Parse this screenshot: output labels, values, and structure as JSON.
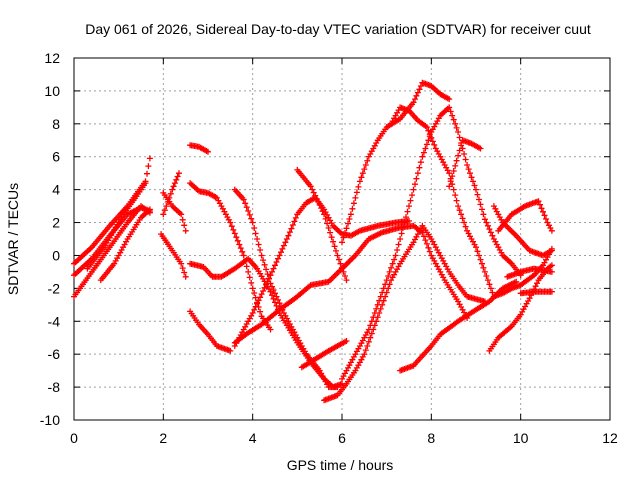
{
  "chart_data": {
    "type": "scatter",
    "title": "Day 061 of 2026, Sidereal Day-to-day VTEC variation (SDTVAR) for receiver cuut",
    "xlabel": "GPS time / hours",
    "ylabel": "SDTVAR / TECUs",
    "xlim": [
      0,
      12
    ],
    "ylim": [
      -10,
      12
    ],
    "xticks": [
      "0",
      "2",
      "4",
      "6",
      "8",
      "10",
      "12"
    ],
    "yticks": [
      "-10",
      "-8",
      "-6",
      "-4",
      "-2",
      "0",
      "2",
      "4",
      "6",
      "8",
      "10",
      "12"
    ],
    "grid": true,
    "marker": "+",
    "color": "#ff0000",
    "series": [
      {
        "name": "track-1",
        "points": [
          [
            0.0,
            -0.5
          ],
          [
            0.4,
            0.5
          ],
          [
            0.8,
            1.8
          ],
          [
            1.2,
            3.0
          ],
          [
            1.6,
            4.5
          ],
          [
            1.7,
            5.9
          ]
        ]
      },
      {
        "name": "track-2",
        "points": [
          [
            0.0,
            -1.2
          ],
          [
            0.4,
            -0.2
          ],
          [
            0.8,
            1.2
          ],
          [
            1.2,
            2.5
          ],
          [
            1.5,
            2.9
          ],
          [
            1.7,
            2.7
          ]
        ]
      },
      {
        "name": "track-3",
        "points": [
          [
            0.0,
            -2.5
          ],
          [
            0.4,
            -1.0
          ],
          [
            0.8,
            0.5
          ],
          [
            1.2,
            2.0
          ],
          [
            1.5,
            3.0
          ],
          [
            1.7,
            2.6
          ]
        ]
      },
      {
        "name": "track-4",
        "points": [
          [
            0.6,
            -1.5
          ],
          [
            0.9,
            -0.5
          ],
          [
            1.2,
            1.0
          ],
          [
            1.5,
            2.3
          ],
          [
            1.7,
            2.8
          ]
        ]
      },
      {
        "name": "track-5",
        "points": [
          [
            0.3,
            -0.8
          ],
          [
            0.7,
            0.6
          ],
          [
            1.1,
            2.5
          ],
          [
            1.4,
            3.6
          ],
          [
            1.6,
            4.4
          ]
        ]
      },
      {
        "name": "track-6",
        "points": [
          [
            1.95,
            1.3
          ],
          [
            2.2,
            0.3
          ],
          [
            2.4,
            -0.5
          ],
          [
            2.5,
            -1.3
          ]
        ]
      },
      {
        "name": "track-7",
        "points": [
          [
            2.0,
            3.8
          ],
          [
            2.2,
            3.0
          ],
          [
            2.4,
            2.5
          ],
          [
            2.5,
            1.5
          ]
        ]
      },
      {
        "name": "track-8",
        "points": [
          [
            2.0,
            2.5
          ],
          [
            2.2,
            4.0
          ],
          [
            2.35,
            5.0
          ]
        ]
      },
      {
        "name": "track-9",
        "points": [
          [
            2.6,
            6.7
          ],
          [
            2.8,
            6.6
          ],
          [
            3.0,
            6.3
          ]
        ]
      },
      {
        "name": "track-10",
        "points": [
          [
            2.6,
            4.4
          ],
          [
            2.8,
            3.9
          ],
          [
            3.0,
            3.8
          ],
          [
            3.2,
            3.5
          ],
          [
            3.5,
            2.0
          ],
          [
            3.8,
            0.0
          ],
          [
            4.0,
            -2.0
          ],
          [
            4.2,
            -3.7
          ],
          [
            4.4,
            -4.5
          ]
        ]
      },
      {
        "name": "track-11",
        "points": [
          [
            2.6,
            -3.4
          ],
          [
            2.8,
            -4.2
          ],
          [
            3.0,
            -4.8
          ],
          [
            3.2,
            -5.5
          ],
          [
            3.5,
            -5.8
          ]
        ]
      },
      {
        "name": "track-12",
        "points": [
          [
            2.6,
            -0.5
          ],
          [
            2.9,
            -0.7
          ],
          [
            3.1,
            -1.3
          ],
          [
            3.3,
            -1.3
          ],
          [
            3.6,
            -0.8
          ],
          [
            3.9,
            -0.2
          ],
          [
            4.1,
            -0.8
          ],
          [
            4.4,
            -2.2
          ],
          [
            4.6,
            -3.5
          ],
          [
            5.0,
            -5.3
          ],
          [
            5.3,
            -6.5
          ],
          [
            5.6,
            -7.5
          ],
          [
            5.8,
            -8.0
          ],
          [
            6.0,
            -7.8
          ]
        ]
      },
      {
        "name": "track-13",
        "points": [
          [
            3.6,
            4.0
          ],
          [
            3.8,
            3.4
          ],
          [
            4.0,
            2.0
          ],
          [
            4.2,
            0.0
          ],
          [
            4.4,
            -1.7
          ],
          [
            4.7,
            -3.5
          ],
          [
            5.0,
            -5.0
          ],
          [
            5.2,
            -6.0
          ],
          [
            5.5,
            -7.0
          ],
          [
            5.7,
            -8.0
          ],
          [
            5.9,
            -8.0
          ]
        ]
      },
      {
        "name": "track-14",
        "points": [
          [
            3.6,
            -5.3
          ],
          [
            3.9,
            -4.7
          ],
          [
            4.2,
            -4.2
          ],
          [
            4.6,
            -3.3
          ],
          [
            5.0,
            -2.5
          ],
          [
            5.3,
            -1.8
          ],
          [
            5.7,
            -1.6
          ],
          [
            6.0,
            -0.8
          ],
          [
            6.3,
            0.0
          ],
          [
            6.6,
            1.0
          ],
          [
            6.9,
            1.4
          ],
          [
            7.3,
            1.7
          ],
          [
            7.6,
            1.8
          ],
          [
            7.8,
            1.4
          ],
          [
            8.0,
            0.0
          ],
          [
            8.3,
            -1.5
          ],
          [
            8.6,
            -2.8
          ],
          [
            8.8,
            -3.8
          ]
        ]
      },
      {
        "name": "track-15",
        "points": [
          [
            3.6,
            -5.5
          ],
          [
            4.0,
            -3.5
          ],
          [
            4.4,
            -1.2
          ],
          [
            4.8,
            1.2
          ],
          [
            5.0,
            2.5
          ],
          [
            5.2,
            3.2
          ],
          [
            5.4,
            3.5
          ],
          [
            5.6,
            2.8
          ],
          [
            5.8,
            1.8
          ],
          [
            6.0,
            1.3
          ],
          [
            6.2,
            1.2
          ],
          [
            6.4,
            1.5
          ],
          [
            6.8,
            1.8
          ],
          [
            7.2,
            2.0
          ],
          [
            7.5,
            2.1
          ]
        ]
      },
      {
        "name": "track-16",
        "points": [
          [
            5.0,
            5.2
          ],
          [
            5.3,
            4.2
          ],
          [
            5.6,
            2.5
          ],
          [
            5.9,
            0.0
          ],
          [
            6.1,
            -1.5
          ]
        ]
      },
      {
        "name": "track-17",
        "points": [
          [
            5.6,
            -8.8
          ],
          [
            5.9,
            -8.5
          ],
          [
            6.1,
            -7.8
          ],
          [
            6.3,
            -7.0
          ],
          [
            6.5,
            -6.0
          ],
          [
            6.7,
            -4.5
          ],
          [
            6.9,
            -3.0
          ],
          [
            7.1,
            -1.5
          ],
          [
            7.3,
            -0.5
          ],
          [
            7.6,
            0.8
          ],
          [
            7.8,
            1.8
          ],
          [
            8.0,
            1.0
          ],
          [
            8.2,
            0.0
          ],
          [
            8.4,
            -1.0
          ],
          [
            8.6,
            -1.8
          ],
          [
            8.8,
            -2.5
          ],
          [
            9.2,
            -2.8
          ]
        ]
      },
      {
        "name": "track-18",
        "points": [
          [
            5.1,
            -6.8
          ],
          [
            5.4,
            -6.3
          ],
          [
            5.7,
            -5.8
          ],
          [
            5.9,
            -5.5
          ],
          [
            6.1,
            -5.2
          ]
        ]
      },
      {
        "name": "track-19",
        "points": [
          [
            6.0,
            0.8
          ],
          [
            6.2,
            2.5
          ],
          [
            6.4,
            4.5
          ],
          [
            6.6,
            6.0
          ],
          [
            6.8,
            7.0
          ],
          [
            7.0,
            7.8
          ],
          [
            7.3,
            8.3
          ],
          [
            7.6,
            9.3
          ],
          [
            7.8,
            10.5
          ],
          [
            8.0,
            10.3
          ],
          [
            8.2,
            9.8
          ],
          [
            8.4,
            9.5
          ]
        ]
      },
      {
        "name": "track-20",
        "points": [
          [
            6.0,
            -7.5
          ],
          [
            6.3,
            -6.0
          ],
          [
            6.6,
            -4.5
          ],
          [
            6.8,
            -3.0
          ],
          [
            7.0,
            -1.5
          ],
          [
            7.2,
            0.0
          ],
          [
            7.4,
            2.0
          ],
          [
            7.6,
            4.0
          ],
          [
            7.8,
            6.0
          ],
          [
            8.0,
            7.5
          ],
          [
            8.2,
            8.5
          ],
          [
            8.4,
            9.0
          ],
          [
            8.6,
            7.5
          ],
          [
            8.8,
            5.5
          ],
          [
            9.0,
            4.0
          ],
          [
            9.2,
            2.2
          ],
          [
            9.4,
            1.0
          ],
          [
            9.6,
            0.0
          ],
          [
            9.8,
            -0.5
          ],
          [
            10.0,
            -1.2
          ]
        ]
      },
      {
        "name": "track-21",
        "points": [
          [
            7.1,
            8.0
          ],
          [
            7.3,
            9.0
          ],
          [
            7.5,
            8.8
          ],
          [
            7.7,
            8.2
          ],
          [
            7.9,
            7.8
          ],
          [
            8.1,
            6.5
          ],
          [
            8.4,
            5.0
          ],
          [
            8.6,
            3.0
          ],
          [
            8.8,
            1.5
          ],
          [
            9.0,
            0.5
          ],
          [
            9.2,
            -1.0
          ],
          [
            9.4,
            -2.5
          ],
          [
            9.6,
            -2.3
          ],
          [
            9.8,
            -2.0
          ],
          [
            10.0,
            -1.8
          ],
          [
            10.3,
            -1.2
          ],
          [
            10.5,
            -0.6
          ],
          [
            10.7,
            0.4
          ]
        ]
      },
      {
        "name": "track-22",
        "points": [
          [
            7.3,
            -7.0
          ],
          [
            7.6,
            -6.7
          ],
          [
            8.0,
            -5.5
          ],
          [
            8.2,
            -4.8
          ],
          [
            8.6,
            -4.0
          ],
          [
            9.0,
            -3.3
          ],
          [
            9.3,
            -2.8
          ],
          [
            9.6,
            -2.0
          ],
          [
            9.9,
            -1.6
          ]
        ]
      },
      {
        "name": "track-23",
        "points": [
          [
            8.4,
            4.2
          ],
          [
            8.7,
            7.0
          ],
          [
            8.9,
            6.8
          ],
          [
            9.1,
            6.5
          ]
        ]
      },
      {
        "name": "track-24",
        "points": [
          [
            9.4,
            3.0
          ],
          [
            9.6,
            2.0
          ],
          [
            9.9,
            1.2
          ],
          [
            10.2,
            0.3
          ],
          [
            10.5,
            0.0
          ],
          [
            10.7,
            0.3
          ]
        ]
      },
      {
        "name": "track-25",
        "points": [
          [
            9.3,
            -5.8
          ],
          [
            9.5,
            -5.0
          ],
          [
            9.8,
            -4.3
          ],
          [
            10.0,
            -3.6
          ],
          [
            10.2,
            -2.6
          ],
          [
            10.4,
            -1.5
          ],
          [
            10.6,
            -0.8
          ],
          [
            10.7,
            -0.6
          ]
        ]
      },
      {
        "name": "track-26",
        "points": [
          [
            9.5,
            1.5
          ],
          [
            9.8,
            2.5
          ],
          [
            10.1,
            3.0
          ],
          [
            10.3,
            3.2
          ],
          [
            10.4,
            3.3
          ],
          [
            10.6,
            2.0
          ],
          [
            10.7,
            1.5
          ]
        ]
      },
      {
        "name": "track-27",
        "points": [
          [
            9.7,
            -1.3
          ],
          [
            10.0,
            -1.0
          ],
          [
            10.3,
            -0.8
          ],
          [
            10.5,
            -0.9
          ],
          [
            10.7,
            -1.0
          ]
        ]
      },
      {
        "name": "track-28",
        "points": [
          [
            10.0,
            -2.3
          ],
          [
            10.3,
            -2.2
          ],
          [
            10.7,
            -2.2
          ]
        ]
      }
    ]
  }
}
